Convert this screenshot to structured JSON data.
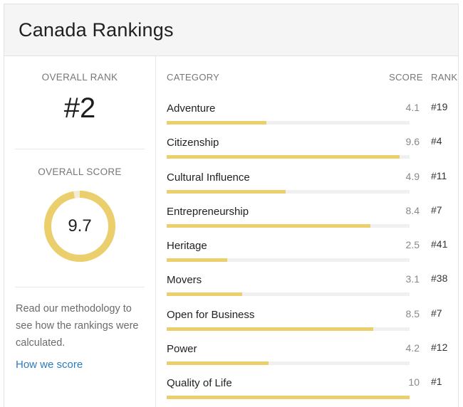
{
  "title": "Canada Rankings",
  "overall_rank": {
    "label": "OVERALL RANK",
    "value": "#2"
  },
  "overall_score": {
    "label": "OVERALL SCORE",
    "value": "9.7",
    "fraction": 0.97
  },
  "methodology": {
    "text": "Read our methodology to see how the rankings were calculated.",
    "link_text": "How we score"
  },
  "table": {
    "headers": {
      "category": "CATEGORY",
      "score": "SCORE",
      "rank": "RANK"
    },
    "rows": [
      {
        "name": "Adventure",
        "score": "4.1",
        "rank": "#19",
        "fraction": 0.41
      },
      {
        "name": "Citizenship",
        "score": "9.6",
        "rank": "#4",
        "fraction": 0.96
      },
      {
        "name": "Cultural Influence",
        "score": "4.9",
        "rank": "#11",
        "fraction": 0.49
      },
      {
        "name": "Entrepreneurship",
        "score": "8.4",
        "rank": "#7",
        "fraction": 0.84
      },
      {
        "name": "Heritage",
        "score": "2.5",
        "rank": "#41",
        "fraction": 0.25
      },
      {
        "name": "Movers",
        "score": "3.1",
        "rank": "#38",
        "fraction": 0.31
      },
      {
        "name": "Open for Business",
        "score": "8.5",
        "rank": "#7",
        "fraction": 0.85
      },
      {
        "name": "Power",
        "score": "4.2",
        "rank": "#12",
        "fraction": 0.42
      },
      {
        "name": "Quality of Life",
        "score": "10",
        "rank": "#1",
        "fraction": 1.0
      }
    ]
  },
  "colors": {
    "accent": "#ebcf6c",
    "track": "#f0f0f0",
    "link": "#2b7bbf"
  }
}
